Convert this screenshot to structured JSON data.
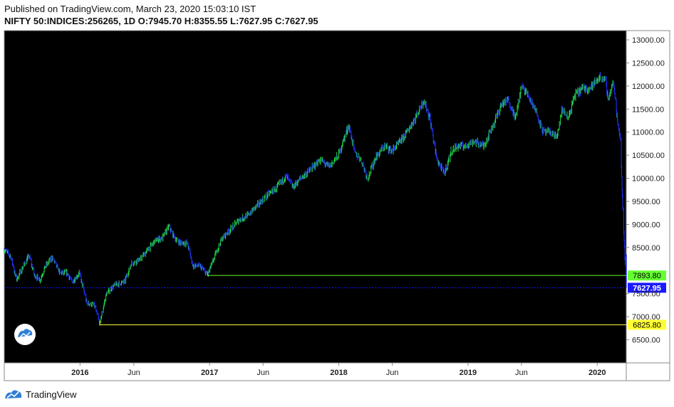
{
  "header": {
    "published": "Published on TradingView.com, March 23, 2020 15:03:10 IST",
    "symbol": "NIFTY 50:INDICES:256265, 1D",
    "ohlc": {
      "o_label": "O:",
      "o": "7945.70",
      "h_label": "H:",
      "h": "8355.55",
      "l_label": "L:",
      "l": "7627.95",
      "c_label": "C:",
      "c": "7627.95"
    }
  },
  "footer": {
    "brand": "TradingView"
  },
  "colors": {
    "background": "#000000",
    "up_candle": "#22dd44",
    "down_candle": "#2233ff",
    "level_green": "#66ff33",
    "level_yellow": "#ffff33",
    "last_price": "#1a1aff",
    "axis_text": "#222222"
  },
  "chart_data": {
    "type": "line",
    "title": "NIFTY 50:INDICES:256265, 1D",
    "ylim": [
      6000,
      13200
    ],
    "y_ticks": [
      "13000.00",
      "12500.00",
      "12000.00",
      "11500.00",
      "11000.00",
      "10500.00",
      "10000.00",
      "9500.00",
      "9000.00",
      "8500.00",
      "7500.00",
      "7000.00",
      "6500.00"
    ],
    "x_ticks": [
      "2016",
      "Jun",
      "2017",
      "Jun",
      "2018",
      "Jun",
      "2019",
      "Jun",
      "2020"
    ],
    "x_range": [
      "2015-06-01",
      "2020-03-23"
    ],
    "series": [
      {
        "values": [
          [
            "2015-06-01",
            8450
          ],
          [
            "2015-06-20",
            8300
          ],
          [
            "2015-07-05",
            7800
          ],
          [
            "2015-07-25",
            8100
          ],
          [
            "2015-08-10",
            8320
          ],
          [
            "2015-08-25",
            7900
          ],
          [
            "2015-09-10",
            7800
          ],
          [
            "2015-09-25",
            8100
          ],
          [
            "2015-10-15",
            8280
          ],
          [
            "2015-11-05",
            7950
          ],
          [
            "2015-11-25",
            7950
          ],
          [
            "2015-12-10",
            7750
          ],
          [
            "2015-12-30",
            7950
          ],
          [
            "2016-01-20",
            7300
          ],
          [
            "2016-02-10",
            7250
          ],
          [
            "2016-02-26",
            6850
          ],
          [
            "2016-03-15",
            7500
          ],
          [
            "2016-04-10",
            7700
          ],
          [
            "2016-05-05",
            7750
          ],
          [
            "2016-05-25",
            8150
          ],
          [
            "2016-06-20",
            8250
          ],
          [
            "2016-07-10",
            8450
          ],
          [
            "2016-08-01",
            8650
          ],
          [
            "2016-08-20",
            8700
          ],
          [
            "2016-09-08",
            8950
          ],
          [
            "2016-09-25",
            8700
          ],
          [
            "2016-10-10",
            8600
          ],
          [
            "2016-10-30",
            8600
          ],
          [
            "2016-11-15",
            8100
          ],
          [
            "2016-12-05",
            8100
          ],
          [
            "2016-12-26",
            7900
          ],
          [
            "2017-01-15",
            8300
          ],
          [
            "2017-02-05",
            8700
          ],
          [
            "2017-03-01",
            8900
          ],
          [
            "2017-03-25",
            9100
          ],
          [
            "2017-04-20",
            9200
          ],
          [
            "2017-05-20",
            9450
          ],
          [
            "2017-06-15",
            9650
          ],
          [
            "2017-07-10",
            9800
          ],
          [
            "2017-08-05",
            10050
          ],
          [
            "2017-08-25",
            9800
          ],
          [
            "2017-09-15",
            10000
          ],
          [
            "2017-10-15",
            10200
          ],
          [
            "2017-11-10",
            10400
          ],
          [
            "2017-12-05",
            10250
          ],
          [
            "2017-12-31",
            10500
          ],
          [
            "2018-01-29",
            11150
          ],
          [
            "2018-02-15",
            10550
          ],
          [
            "2018-03-05",
            10400
          ],
          [
            "2018-03-23",
            10000
          ],
          [
            "2018-04-15",
            10450
          ],
          [
            "2018-05-10",
            10700
          ],
          [
            "2018-05-30",
            10600
          ],
          [
            "2018-06-25",
            10800
          ],
          [
            "2018-07-20",
            11100
          ],
          [
            "2018-08-15",
            11450
          ],
          [
            "2018-08-28",
            11700
          ],
          [
            "2018-09-15",
            11300
          ],
          [
            "2018-10-05",
            10400
          ],
          [
            "2018-10-26",
            10100
          ],
          [
            "2018-11-15",
            10600
          ],
          [
            "2018-12-05",
            10700
          ],
          [
            "2018-12-26",
            10700
          ],
          [
            "2019-01-15",
            10800
          ],
          [
            "2019-02-15",
            10700
          ],
          [
            "2019-03-10",
            11100
          ],
          [
            "2019-04-05",
            11600
          ],
          [
            "2019-04-25",
            11700
          ],
          [
            "2019-05-15",
            11300
          ],
          [
            "2019-06-01",
            12000
          ],
          [
            "2019-06-20",
            11800
          ],
          [
            "2019-07-10",
            11500
          ],
          [
            "2019-08-01",
            11000
          ],
          [
            "2019-08-20",
            11000
          ],
          [
            "2019-09-10",
            10900
          ],
          [
            "2019-09-24",
            11500
          ],
          [
            "2019-10-10",
            11300
          ],
          [
            "2019-10-30",
            11800
          ],
          [
            "2019-11-20",
            11950
          ],
          [
            "2019-12-10",
            11950
          ],
          [
            "2020-01-10",
            12200
          ],
          [
            "2020-01-25",
            12100
          ],
          [
            "2020-02-01",
            11700
          ],
          [
            "2020-02-15",
            12100
          ],
          [
            "2020-02-28",
            11200
          ],
          [
            "2020-03-06",
            10900
          ],
          [
            "2020-03-12",
            9600
          ],
          [
            "2020-03-16",
            8800
          ],
          [
            "2020-03-19",
            8300
          ],
          [
            "2020-03-23",
            7627.95
          ]
        ]
      }
    ],
    "levels": [
      {
        "value": 7893.8,
        "label": "7893.80",
        "color": "#66ff33",
        "from": "2016-12-26"
      },
      {
        "value": 7627.95,
        "label": "7627.95",
        "color": "#1a1aff",
        "from": "2015-06-01"
      },
      {
        "value": 6825.8,
        "label": "6825.80",
        "color": "#ffff33",
        "from": "2016-02-26"
      }
    ]
  }
}
